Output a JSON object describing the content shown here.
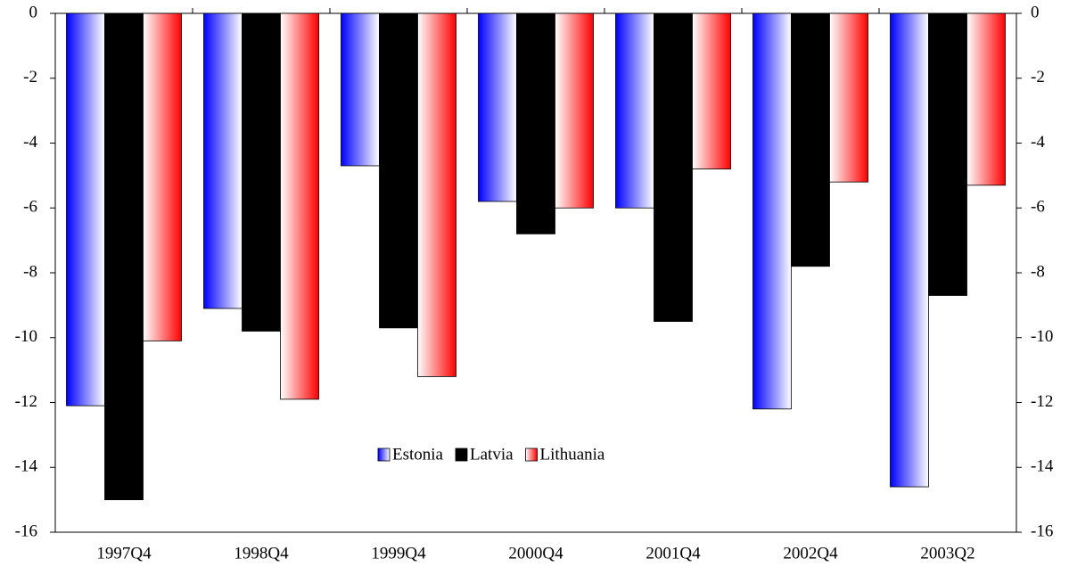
{
  "chart_data": {
    "type": "bar",
    "categories": [
      "1997Q4",
      "1998Q4",
      "1999Q4",
      "2000Q4",
      "2001Q4",
      "2002Q4",
      "2003Q2"
    ],
    "series": [
      {
        "name": "Estonia",
        "color": "#0000ff",
        "values": [
          -12.1,
          -9.1,
          -4.7,
          -5.8,
          -6.0,
          -12.2,
          -14.6
        ]
      },
      {
        "name": "Latvia",
        "color": "#000000",
        "values": [
          -15.0,
          -9.8,
          -9.7,
          -6.8,
          -9.5,
          -7.8,
          -8.7
        ]
      },
      {
        "name": "Lithuania",
        "color": "#ff0000",
        "values": [
          -10.1,
          -11.9,
          -11.2,
          -6.0,
          -4.8,
          -5.2,
          -5.3
        ]
      }
    ],
    "ylim": [
      -16,
      0
    ],
    "yticks": [
      0,
      -2,
      -4,
      -6,
      -8,
      -10,
      -12,
      -14,
      -16
    ],
    "y2lim": [
      -16,
      0
    ],
    "y2ticks": [
      0,
      -2,
      -4,
      -6,
      -8,
      -10,
      -12,
      -14,
      -16
    ],
    "grid": false,
    "legend": "center"
  }
}
